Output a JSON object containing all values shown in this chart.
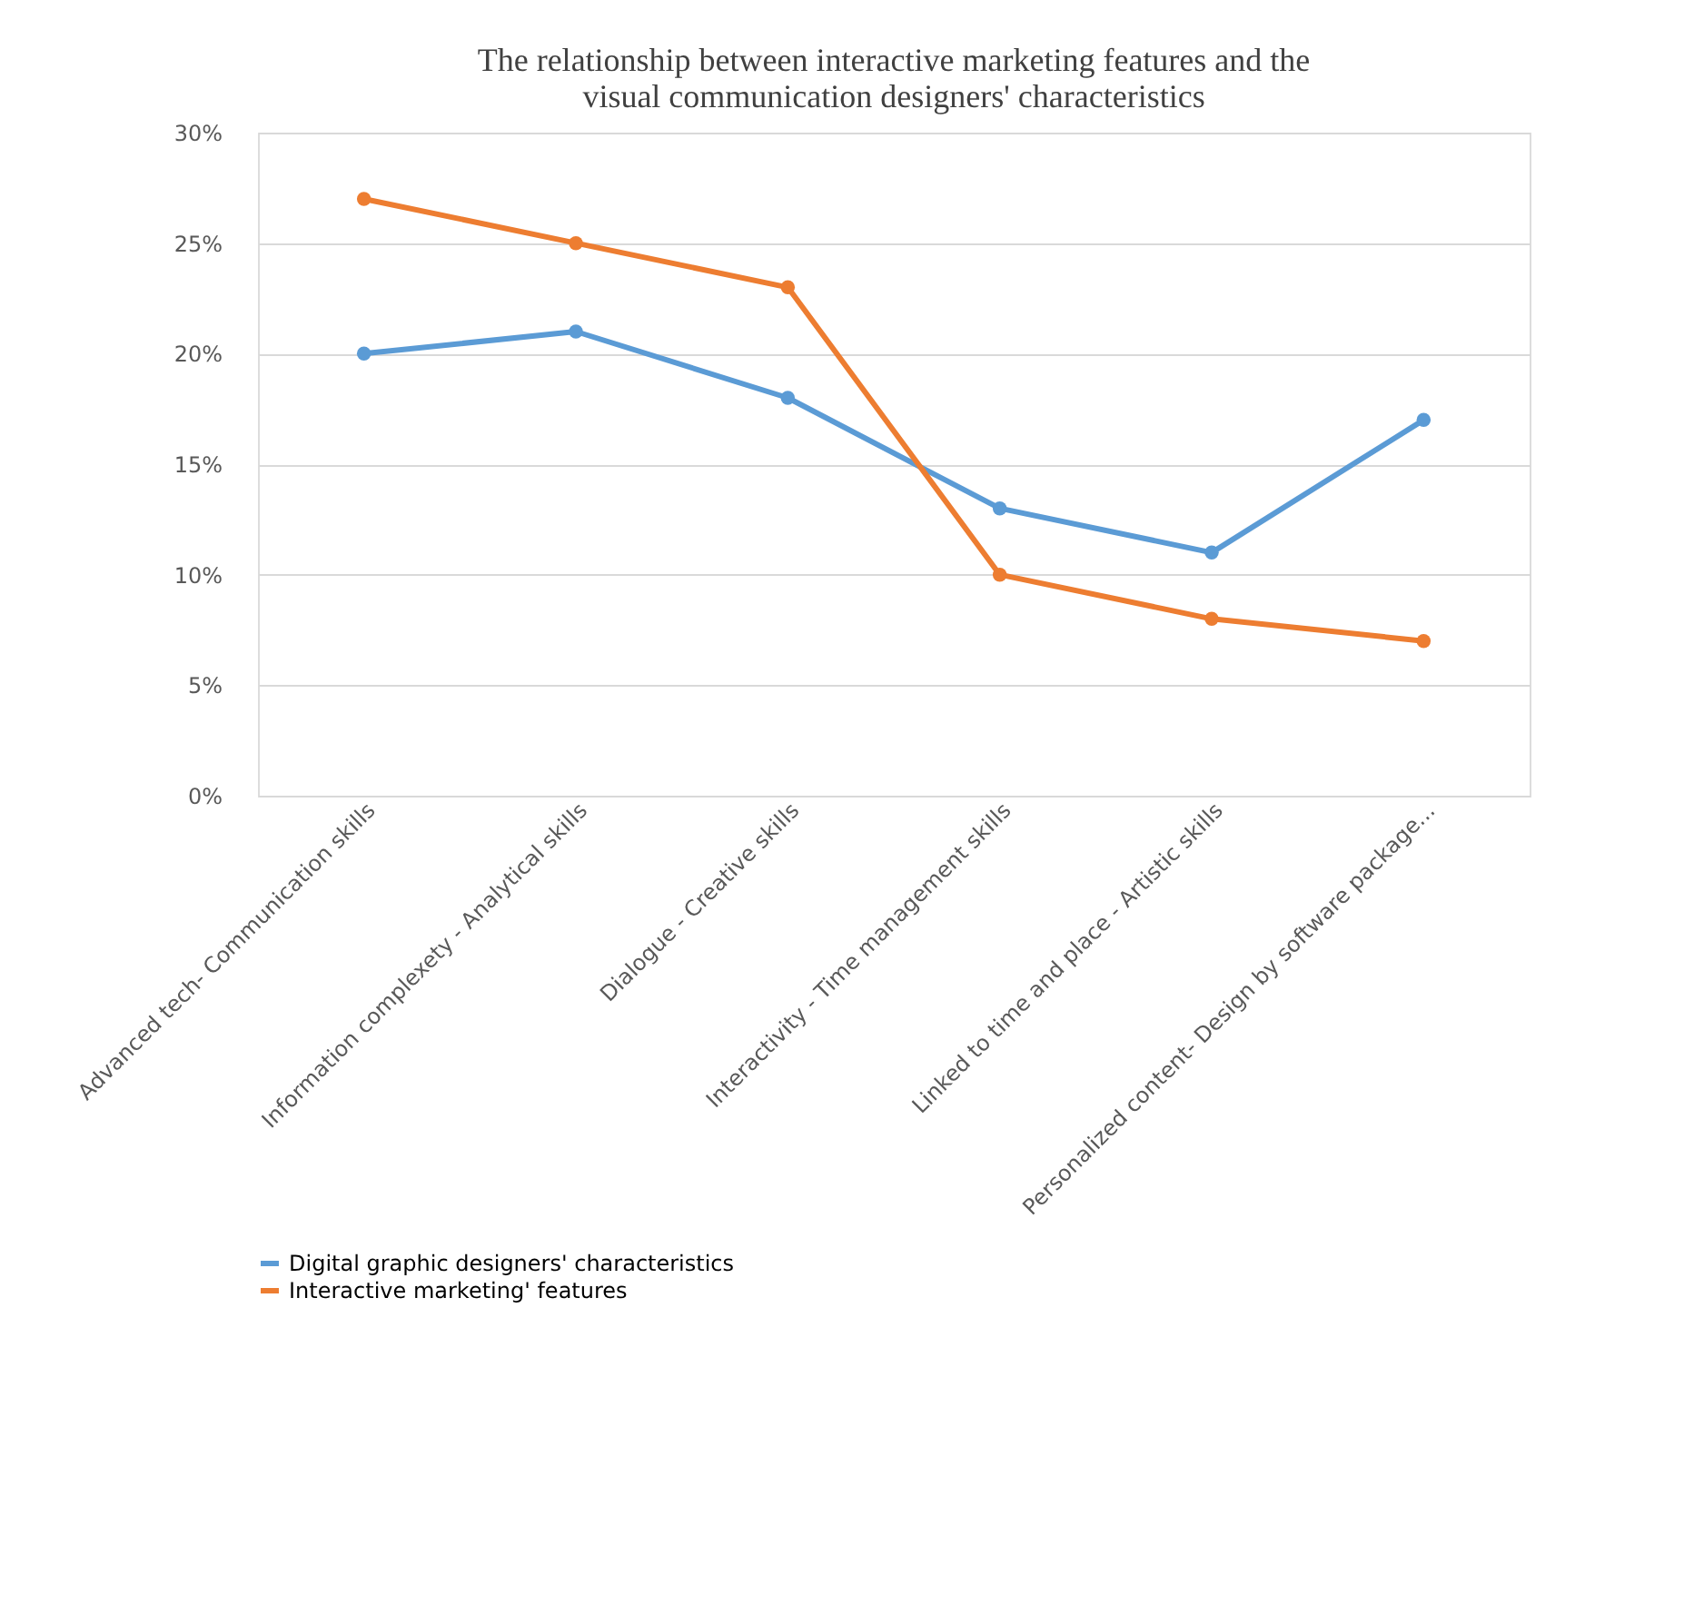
{
  "chart_data": {
    "type": "line",
    "title": "The relationship between interactive marketing features and the\nvisual communication designers' characteristics",
    "categories": [
      "Advanced tech- Communication skills",
      "Information complexety - Analytical skills",
      "Dialogue - Creative skills",
      "Interactivity - Time management skills",
      "Linked to time and place - Artistic skills",
      "Personalized content- Design by software package..."
    ],
    "series": [
      {
        "name": "Digital graphic designers' characteristics",
        "color": "#5b9bd5",
        "values": [
          20,
          21,
          18,
          13,
          11,
          17
        ]
      },
      {
        "name": "Interactive marketing' features",
        "color": "#ed7d31",
        "values": [
          27,
          25,
          23,
          10,
          8,
          7
        ]
      }
    ],
    "ylim": [
      0,
      30
    ],
    "yticks": [
      {
        "value": 0,
        "label": "0%"
      },
      {
        "value": 5,
        "label": "5%"
      },
      {
        "value": 10,
        "label": "10%"
      },
      {
        "value": 15,
        "label": "15%"
      },
      {
        "value": 20,
        "label": "20%"
      },
      {
        "value": 25,
        "label": "25%"
      },
      {
        "value": 30,
        "label": "30%"
      }
    ],
    "grid": "y",
    "legend": "bottom",
    "marker": "circle",
    "line_style": "solid"
  }
}
